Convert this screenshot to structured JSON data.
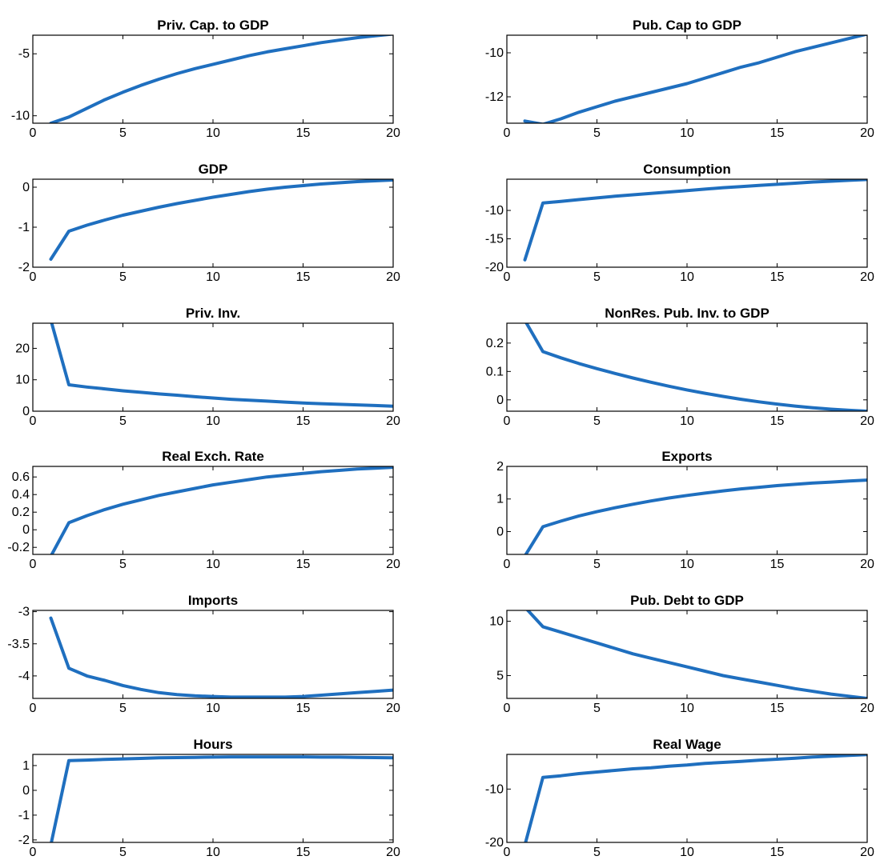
{
  "colors": {
    "line": "#1f6fbf",
    "axis": "#000000",
    "background": "#ffffff"
  },
  "chart_data": [
    {
      "type": "line",
      "title": "Priv. Cap. to GDP",
      "x": [
        1,
        2,
        3,
        4,
        5,
        6,
        7,
        8,
        9,
        10,
        11,
        12,
        13,
        14,
        15,
        16,
        17,
        18,
        19,
        20
      ],
      "values": [
        -10.6,
        -10.1,
        -9.4,
        -8.7,
        -8.1,
        -7.55,
        -7.05,
        -6.6,
        -6.2,
        -5.85,
        -5.5,
        -5.15,
        -4.85,
        -4.6,
        -4.35,
        -4.1,
        -3.9,
        -3.7,
        -3.55,
        -3.4
      ],
      "xlim": [
        0,
        20
      ],
      "ylim": [
        -10.6,
        -3.5
      ],
      "xticks": [
        0,
        5,
        10,
        15,
        20
      ],
      "yticks": [
        -5,
        -10
      ],
      "xtick_labels": [
        "0",
        "5",
        "10",
        "15",
        "20"
      ],
      "ytick_labels": [
        "-5",
        "-10"
      ],
      "grid": false
    },
    {
      "type": "line",
      "title": "Pub. Cap to GDP",
      "x": [
        1,
        2,
        3,
        4,
        5,
        6,
        7,
        8,
        9,
        10,
        11,
        12,
        13,
        14,
        15,
        16,
        17,
        18,
        19,
        20
      ],
      "values": [
        -13.1,
        -13.25,
        -13.0,
        -12.7,
        -12.45,
        -12.2,
        -12.0,
        -11.8,
        -11.6,
        -11.4,
        -11.15,
        -10.9,
        -10.65,
        -10.45,
        -10.2,
        -9.95,
        -9.75,
        -9.55,
        -9.35,
        -9.15
      ],
      "xlim": [
        0,
        20
      ],
      "ylim": [
        -13.2,
        -9.2
      ],
      "xticks": [
        0,
        5,
        10,
        15,
        20
      ],
      "yticks": [
        -10,
        -12
      ],
      "xtick_labels": [
        "0",
        "5",
        "10",
        "15",
        "20"
      ],
      "ytick_labels": [
        "-10",
        "-12"
      ],
      "grid": false
    },
    {
      "type": "line",
      "title": "GDP",
      "x": [
        1,
        2,
        3,
        4,
        5,
        6,
        7,
        8,
        9,
        10,
        11,
        12,
        13,
        14,
        15,
        16,
        17,
        18,
        19,
        20
      ],
      "values": [
        -1.8,
        -1.1,
        -0.95,
        -0.82,
        -0.7,
        -0.6,
        -0.5,
        -0.41,
        -0.33,
        -0.25,
        -0.18,
        -0.11,
        -0.05,
        0.0,
        0.04,
        0.08,
        0.11,
        0.14,
        0.16,
        0.18
      ],
      "xlim": [
        0,
        20
      ],
      "ylim": [
        -2,
        0.2
      ],
      "xticks": [
        0,
        5,
        10,
        15,
        20
      ],
      "yticks": [
        0,
        -1,
        -2
      ],
      "xtick_labels": [
        "0",
        "5",
        "10",
        "15",
        "20"
      ],
      "ytick_labels": [
        "0",
        "-1",
        "-2"
      ],
      "grid": false
    },
    {
      "type": "line",
      "title": "Consumption",
      "x": [
        1,
        2,
        3,
        4,
        5,
        6,
        7,
        8,
        9,
        10,
        11,
        12,
        13,
        14,
        15,
        16,
        17,
        18,
        19,
        20
      ],
      "values": [
        -18.7,
        -8.7,
        -8.4,
        -8.1,
        -7.8,
        -7.5,
        -7.25,
        -7.0,
        -6.75,
        -6.5,
        -6.25,
        -6.0,
        -5.8,
        -5.6,
        -5.4,
        -5.2,
        -5.0,
        -4.85,
        -4.7,
        -4.55
      ],
      "xlim": [
        0,
        20
      ],
      "ylim": [
        -20,
        -4.5
      ],
      "xticks": [
        0,
        5,
        10,
        15,
        20
      ],
      "yticks": [
        -10,
        -15,
        -20
      ],
      "xtick_labels": [
        "0",
        "5",
        "10",
        "15",
        "20"
      ],
      "ytick_labels": [
        "-10",
        "-15",
        "-20"
      ],
      "grid": false
    },
    {
      "type": "line",
      "title": "Priv. Inv.",
      "x": [
        1,
        2,
        3,
        4,
        5,
        6,
        7,
        8,
        9,
        10,
        11,
        12,
        13,
        14,
        15,
        16,
        17,
        18,
        19,
        20
      ],
      "values": [
        29,
        8.4,
        7.7,
        7.1,
        6.5,
        6.0,
        5.5,
        5.1,
        4.6,
        4.2,
        3.8,
        3.5,
        3.2,
        2.9,
        2.6,
        2.4,
        2.2,
        2.0,
        1.8,
        1.6
      ],
      "xlim": [
        0,
        20
      ],
      "ylim": [
        0,
        28
      ],
      "xticks": [
        0,
        5,
        10,
        15,
        20
      ],
      "yticks": [
        20,
        10,
        0
      ],
      "xtick_labels": [
        "0",
        "5",
        "10",
        "15",
        "20"
      ],
      "ytick_labels": [
        "20",
        "10",
        "0"
      ],
      "grid": false
    },
    {
      "type": "line",
      "title": "NonRes. Pub. Inv. to GDP",
      "x": [
        1,
        2,
        3,
        4,
        5,
        6,
        7,
        8,
        9,
        10,
        11,
        12,
        13,
        14,
        15,
        16,
        17,
        18,
        19,
        20
      ],
      "values": [
        0.28,
        0.17,
        0.148,
        0.128,
        0.11,
        0.093,
        0.077,
        0.062,
        0.048,
        0.035,
        0.023,
        0.012,
        0.002,
        -0.007,
        -0.015,
        -0.022,
        -0.028,
        -0.033,
        -0.037,
        -0.04
      ],
      "xlim": [
        0,
        20
      ],
      "ylim": [
        -0.04,
        0.27
      ],
      "xticks": [
        0,
        5,
        10,
        15,
        20
      ],
      "yticks": [
        0.2,
        0.1,
        0
      ],
      "xtick_labels": [
        "0",
        "5",
        "10",
        "15",
        "20"
      ],
      "ytick_labels": [
        "0.2",
        "0.1",
        "0"
      ],
      "grid": false
    },
    {
      "type": "line",
      "title": "Real Exch. Rate",
      "x": [
        1,
        2,
        3,
        4,
        5,
        6,
        7,
        8,
        9,
        10,
        11,
        12,
        13,
        14,
        15,
        16,
        17,
        18,
        19,
        20
      ],
      "values": [
        -0.3,
        0.08,
        0.16,
        0.23,
        0.29,
        0.34,
        0.39,
        0.43,
        0.47,
        0.51,
        0.54,
        0.57,
        0.6,
        0.62,
        0.64,
        0.66,
        0.675,
        0.69,
        0.7,
        0.71
      ],
      "xlim": [
        0,
        20
      ],
      "ylim": [
        -0.28,
        0.72
      ],
      "xticks": [
        0,
        5,
        10,
        15,
        20
      ],
      "yticks": [
        0.6,
        0.4,
        0.2,
        0,
        -0.2
      ],
      "xtick_labels": [
        "0",
        "5",
        "10",
        "15",
        "20"
      ],
      "ytick_labels": [
        "0.6",
        "0.4",
        "0.2",
        "0",
        "-0.2"
      ],
      "grid": false
    },
    {
      "type": "line",
      "title": "Exports",
      "x": [
        1,
        2,
        3,
        4,
        5,
        6,
        7,
        8,
        9,
        10,
        11,
        12,
        13,
        14,
        15,
        16,
        17,
        18,
        19,
        20
      ],
      "values": [
        -0.75,
        0.15,
        0.32,
        0.48,
        0.61,
        0.73,
        0.84,
        0.94,
        1.03,
        1.11,
        1.18,
        1.25,
        1.31,
        1.36,
        1.41,
        1.45,
        1.49,
        1.52,
        1.55,
        1.58
      ],
      "xlim": [
        0,
        20
      ],
      "ylim": [
        -0.7,
        2
      ],
      "xticks": [
        0,
        5,
        10,
        15,
        20
      ],
      "yticks": [
        2,
        1,
        0
      ],
      "xtick_labels": [
        "0",
        "5",
        "10",
        "15",
        "20"
      ],
      "ytick_labels": [
        "2",
        "1",
        "0"
      ],
      "grid": false
    },
    {
      "type": "line",
      "title": "Imports",
      "x": [
        1,
        2,
        3,
        4,
        5,
        6,
        7,
        8,
        9,
        10,
        11,
        12,
        13,
        14,
        15,
        16,
        17,
        18,
        19,
        20
      ],
      "values": [
        -3.1,
        -3.88,
        -4.0,
        -4.07,
        -4.15,
        -4.21,
        -4.26,
        -4.29,
        -4.31,
        -4.32,
        -4.33,
        -4.33,
        -4.33,
        -4.33,
        -4.32,
        -4.3,
        -4.28,
        -4.26,
        -4.24,
        -4.22
      ],
      "xlim": [
        0,
        20
      ],
      "ylim": [
        -4.35,
        -2.98
      ],
      "xticks": [
        0,
        5,
        10,
        15,
        20
      ],
      "yticks": [
        -3,
        -3.5,
        -4
      ],
      "xtick_labels": [
        "0",
        "5",
        "10",
        "15",
        "20"
      ],
      "ytick_labels": [
        "-3",
        "-3.5",
        "-4"
      ],
      "grid": false
    },
    {
      "type": "line",
      "title": "Pub. Debt to GDP",
      "x": [
        1,
        2,
        3,
        4,
        5,
        6,
        7,
        8,
        9,
        10,
        11,
        12,
        13,
        14,
        15,
        16,
        17,
        18,
        19,
        20
      ],
      "values": [
        11.3,
        9.5,
        9.0,
        8.5,
        8.0,
        7.5,
        7.0,
        6.6,
        6.2,
        5.8,
        5.4,
        5.0,
        4.7,
        4.4,
        4.1,
        3.8,
        3.55,
        3.3,
        3.1,
        2.9
      ],
      "xlim": [
        0,
        20
      ],
      "ylim": [
        2.9,
        11
      ],
      "xticks": [
        0,
        5,
        10,
        15,
        20
      ],
      "yticks": [
        10,
        5
      ],
      "xtick_labels": [
        "0",
        "5",
        "10",
        "15",
        "20"
      ],
      "ytick_labels": [
        "10",
        "5"
      ],
      "grid": false
    },
    {
      "type": "line",
      "title": "Hours",
      "x": [
        1,
        2,
        3,
        4,
        5,
        6,
        7,
        8,
        9,
        10,
        11,
        12,
        13,
        14,
        15,
        16,
        17,
        18,
        19,
        20
      ],
      "values": [
        -2.2,
        1.2,
        1.22,
        1.25,
        1.27,
        1.29,
        1.31,
        1.32,
        1.33,
        1.34,
        1.35,
        1.35,
        1.35,
        1.35,
        1.35,
        1.34,
        1.34,
        1.33,
        1.32,
        1.31
      ],
      "xlim": [
        0,
        20
      ],
      "ylim": [
        -2.1,
        1.45
      ],
      "xticks": [
        0,
        5,
        10,
        15,
        20
      ],
      "yticks": [
        1,
        0,
        -1,
        -2
      ],
      "xtick_labels": [
        "0",
        "5",
        "10",
        "15",
        "20"
      ],
      "ytick_labels": [
        "1",
        "0",
        "-1",
        "-2"
      ],
      "grid": false
    },
    {
      "type": "line",
      "title": "Real Wage",
      "x": [
        1,
        2,
        3,
        4,
        5,
        6,
        7,
        8,
        9,
        10,
        11,
        12,
        13,
        14,
        15,
        16,
        17,
        18,
        19,
        20
      ],
      "values": [
        -20.5,
        -7.8,
        -7.5,
        -7.1,
        -6.8,
        -6.5,
        -6.2,
        -6.0,
        -5.7,
        -5.5,
        -5.2,
        -5.0,
        -4.8,
        -4.6,
        -4.4,
        -4.2,
        -4.0,
        -3.85,
        -3.7,
        -3.55
      ],
      "xlim": [
        0,
        20
      ],
      "ylim": [
        -20,
        -3.5
      ],
      "xticks": [
        0,
        5,
        10,
        15,
        20
      ],
      "yticks": [
        -10,
        -20
      ],
      "xtick_labels": [
        "0",
        "5",
        "10",
        "15",
        "20"
      ],
      "ytick_labels": [
        "-10",
        "-20"
      ],
      "grid": false
    }
  ]
}
